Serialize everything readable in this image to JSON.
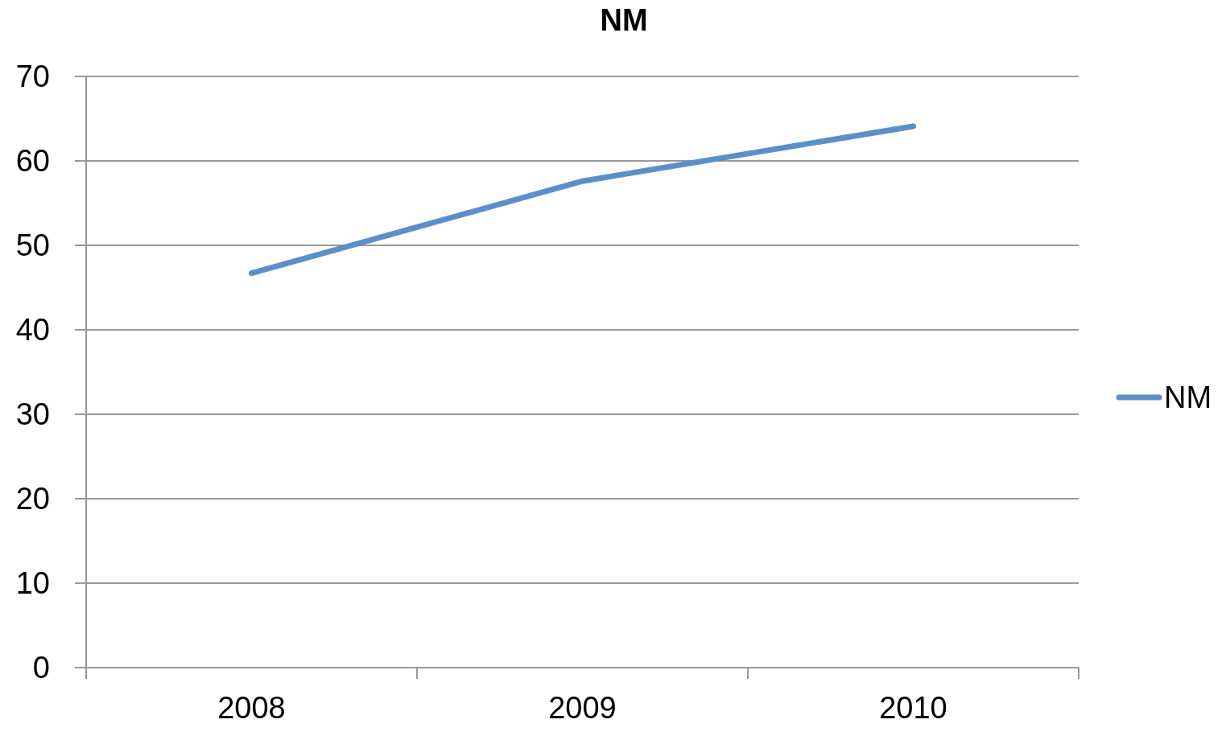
{
  "chart_data": {
    "type": "line",
    "title": "NM",
    "categories": [
      "2008",
      "2009",
      "2010"
    ],
    "series": [
      {
        "name": "NM",
        "color": "#5b8fc9",
        "values": [
          46.7,
          57.6,
          64.1
        ]
      }
    ],
    "ylim": [
      0,
      70
    ],
    "yticks": [
      0,
      10,
      20,
      30,
      40,
      50,
      60,
      70
    ],
    "grid": "y",
    "legend": "right",
    "marker": "none",
    "line_style": "solid"
  }
}
